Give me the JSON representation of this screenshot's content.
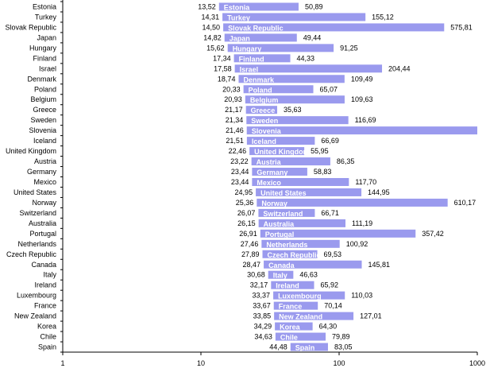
{
  "chart_data": {
    "type": "bar",
    "orientation": "horizontal",
    "bar_style": "floating range (start to end)",
    "x_scale": "log",
    "xlim": [
      1,
      1000
    ],
    "x_ticks": [
      "1",
      "10",
      "100",
      "1000"
    ],
    "grid": false,
    "legend": "none",
    "decimal_separator": ",",
    "bar_color": "#9a9aee",
    "label_color": "#ffffff",
    "categories": [
      "Estonia",
      "Turkey",
      "Slovak Republic",
      "Japan",
      "Hungary",
      "Finland",
      "Israel",
      "Denmark",
      "Poland",
      "Belgium",
      "Greece",
      "Sweden",
      "Slovenia",
      "Iceland",
      "United Kingdom",
      "Austria",
      "Germany",
      "Mexico",
      "United States",
      "Norway",
      "Switzerland",
      "Australia",
      "Portugal",
      "Netherlands",
      "Czech Republic",
      "Canada",
      "Italy",
      "Ireland",
      "Luxembourg",
      "France",
      "New Zealand",
      "Korea",
      "Chile",
      "Spain"
    ],
    "start": [
      13.52,
      14.31,
      14.5,
      14.82,
      15.62,
      17.34,
      17.58,
      18.74,
      20.33,
      20.93,
      21.17,
      21.34,
      21.46,
      21.51,
      22.46,
      23.22,
      23.44,
      23.44,
      24.95,
      25.36,
      26.07,
      26.15,
      26.91,
      27.46,
      27.89,
      28.47,
      30.68,
      32.17,
      33.37,
      33.67,
      33.85,
      34.29,
      34.63,
      44.48
    ],
    "end": [
      50.89,
      155.12,
      575.81,
      49.44,
      91.25,
      44.33,
      204.44,
      109.49,
      65.07,
      109.63,
      35.63,
      116.69,
      null,
      66.69,
      55.95,
      86.35,
      58.83,
      117.7,
      144.95,
      610.17,
      66.71,
      111.19,
      357.42,
      100.92,
      69.53,
      145.81,
      46.63,
      65.92,
      110.03,
      70.14,
      127.01,
      64.3,
      79.89,
      83.05
    ]
  }
}
